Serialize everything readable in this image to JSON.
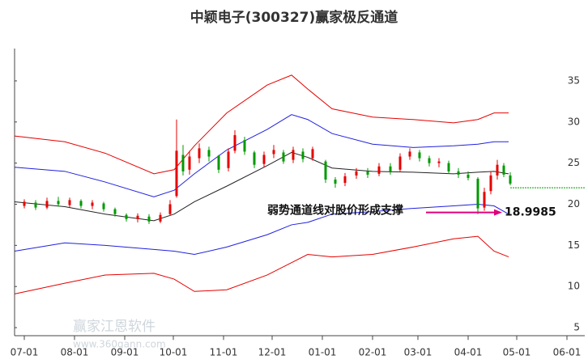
{
  "chart_data": {
    "type": "candlestick",
    "title": "中颖电子(300327)赢家极反通道",
    "annotation": "弱势通道线对股价形成支撑",
    "support_value": 18.9985,
    "watermark": "赢家江恩软件",
    "watermark_url": "www.360gann.com",
    "xlim": [
      -6,
      346
    ],
    "ylim": [
      4,
      39
    ],
    "xticks": [
      {
        "value": 0,
        "label": "07-01"
      },
      {
        "value": 31,
        "label": "08-01"
      },
      {
        "value": 62,
        "label": "09-01"
      },
      {
        "value": 92,
        "label": "10-01"
      },
      {
        "value": 123,
        "label": "11-01"
      },
      {
        "value": 153,
        "label": "12-01"
      },
      {
        "value": 184,
        "label": "01-01"
      },
      {
        "value": 215,
        "label": "02-01"
      },
      {
        "value": 243,
        "label": "03-01"
      },
      {
        "value": 274,
        "label": "04-01"
      },
      {
        "value": 304,
        "label": "05-01"
      },
      {
        "value": 335,
        "label": "06-01"
      }
    ],
    "yticks": [
      5,
      10,
      15,
      20,
      25,
      30,
      35
    ],
    "up_color": "#e60000",
    "down_color": "#009900",
    "last_price_line": 22,
    "last_price_color": "#009900",
    "candles": {
      "x": [
        0,
        7,
        14,
        21,
        28,
        35,
        42,
        49,
        56,
        63,
        70,
        77,
        84,
        90,
        94,
        98,
        102,
        108,
        114,
        120,
        126,
        130,
        136,
        142,
        148,
        154,
        160,
        166,
        172,
        178,
        186,
        192,
        198,
        205,
        212,
        219,
        226,
        232,
        238,
        244,
        250,
        256,
        262,
        268,
        274,
        280,
        284,
        288,
        292,
        296,
        300
      ],
      "open": [
        19.8,
        20.2,
        19.6,
        20.4,
        19.9,
        20.4,
        19.8,
        20.1,
        19.4,
        18.7,
        18.2,
        18.5,
        17.9,
        18.8,
        21.0,
        26.0,
        24.2,
        25.6,
        26.6,
        25.9,
        24.4,
        26.5,
        27.8,
        26.3,
        24.9,
        26.1,
        26.3,
        25.4,
        26.4,
        25.6,
        25.2,
        23.0,
        22.6,
        23.5,
        24.0,
        23.7,
        24.6,
        24.2,
        25.8,
        26.3,
        25.6,
        25.0,
        25.0,
        24.0,
        23.6,
        23.1,
        19.6,
        21.6,
        23.5,
        24.7,
        23.5
      ],
      "close": [
        20.3,
        19.6,
        20.4,
        20.0,
        20.5,
        19.8,
        20.2,
        19.4,
        18.8,
        18.2,
        18.6,
        17.9,
        18.7,
        20.0,
        26.5,
        24.0,
        25.8,
        26.8,
        25.8,
        24.2,
        26.4,
        28.4,
        26.4,
        24.8,
        26.0,
        26.6,
        25.2,
        26.6,
        25.5,
        26.7,
        23.0,
        22.5,
        23.4,
        24.0,
        23.6,
        24.6,
        24.0,
        25.8,
        26.4,
        25.6,
        25.0,
        25.2,
        24.0,
        23.6,
        23.2,
        19.5,
        21.5,
        23.5,
        24.8,
        23.6,
        22.5
      ],
      "high": [
        20.6,
        20.5,
        20.8,
        20.9,
        20.8,
        20.6,
        20.5,
        20.3,
        19.6,
        18.9,
        18.9,
        18.8,
        19.0,
        20.5,
        30.3,
        27.2,
        26.5,
        27.4,
        27.0,
        26.0,
        26.8,
        29.0,
        28.2,
        26.5,
        26.4,
        27.2,
        26.6,
        27.0,
        26.8,
        27.0,
        25.4,
        23.3,
        23.8,
        24.4,
        24.4,
        25.0,
        25.0,
        26.2,
        26.8,
        26.6,
        25.9,
        25.6,
        25.3,
        24.4,
        24.0,
        23.3,
        22.0,
        24.0,
        25.4,
        25.0,
        23.9
      ],
      "low": [
        19.5,
        19.3,
        19.4,
        19.7,
        19.6,
        19.5,
        19.4,
        19.1,
        18.5,
        17.9,
        17.8,
        17.6,
        17.7,
        18.6,
        20.8,
        23.5,
        23.6,
        25.0,
        25.2,
        23.8,
        24.0,
        26.2,
        26.0,
        24.4,
        24.5,
        25.6,
        24.9,
        25.0,
        25.1,
        25.3,
        22.6,
        22.0,
        22.2,
        23.1,
        23.2,
        23.4,
        23.6,
        23.9,
        25.4,
        25.2,
        24.6,
        24.5,
        23.7,
        23.2,
        22.9,
        18.8,
        19.2,
        21.2,
        23.0,
        23.3,
        22.3
      ]
    },
    "lines_x": [
      -6,
      25,
      50,
      80,
      92.5,
      105,
      125,
      150,
      165,
      175,
      190,
      215,
      240,
      265,
      280,
      290,
      299
    ],
    "lines": [
      {
        "color": "#e60000",
        "values": [
          28.3,
          27.6,
          26.2,
          23.7,
          24.2,
          27.1,
          31.1,
          34.5,
          35.7,
          34.0,
          31.6,
          30.6,
          30.3,
          29.9,
          30.3,
          31.1,
          31.1
        ]
      },
      {
        "color": "#2020e0",
        "values": [
          24.5,
          24.0,
          22.7,
          20.9,
          21.7,
          23.7,
          26.6,
          29.1,
          30.9,
          30.3,
          28.6,
          27.3,
          26.9,
          27.1,
          27.3,
          27.6,
          27.6
        ]
      },
      {
        "color": "#222222",
        "values": [
          20.3,
          19.7,
          18.8,
          18.0,
          18.8,
          20.3,
          22.2,
          24.7,
          26.3,
          25.7,
          24.4,
          24.0,
          23.9,
          23.7,
          23.9,
          24.0,
          23.7
        ]
      },
      {
        "color": "#2020e0",
        "values": [
          14.3,
          15.3,
          15.0,
          14.5,
          14.3,
          13.9,
          14.8,
          16.3,
          17.5,
          17.8,
          18.8,
          19.1,
          19.5,
          19.8,
          20.0,
          19.8,
          18.8
        ]
      },
      {
        "color": "#e60000",
        "values": [
          9.1,
          10.4,
          11.4,
          11.6,
          10.9,
          9.4,
          9.6,
          11.4,
          12.9,
          13.9,
          13.6,
          13.9,
          14.8,
          15.8,
          16.1,
          14.3,
          13.6
        ]
      }
    ]
  }
}
